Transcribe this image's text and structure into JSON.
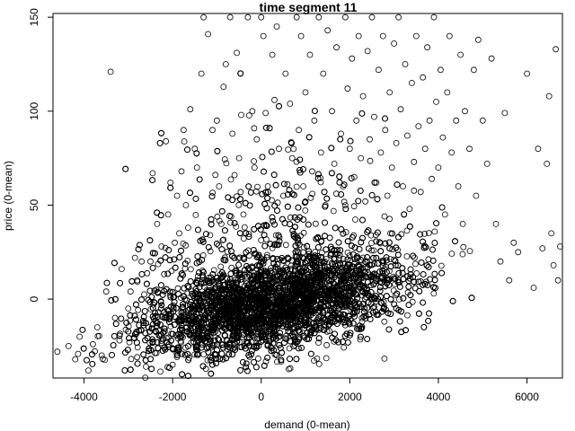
{
  "chart_data": {
    "type": "scatter",
    "title": "time segment 11",
    "xlabel": "demand (0-mean)",
    "ylabel": "price (0-mean)",
    "xlim": [
      -4700,
      6800
    ],
    "ylim": [
      -42,
      152
    ],
    "xticks": [
      -4000,
      -2000,
      0,
      2000,
      4000,
      6000
    ],
    "yticks": [
      0,
      50,
      100,
      150
    ],
    "grid": false,
    "legend": "none",
    "marker": "open-circle",
    "marker_color": "#000000",
    "series": [
      {
        "points": [
          [
            -4600,
            -28
          ],
          [
            -4350,
            -25
          ],
          [
            -4200,
            -32
          ],
          [
            -4100,
            -20
          ],
          [
            -3900,
            -38
          ],
          [
            -3800,
            -24
          ],
          [
            -3700,
            -15
          ],
          [
            -3600,
            -30
          ],
          [
            -3500,
            4
          ],
          [
            -3400,
            121
          ],
          [
            -3300,
            -10
          ],
          [
            -3200,
            -22
          ],
          [
            -3150,
            16
          ],
          [
            -3000,
            -5
          ],
          [
            -2950,
            4
          ],
          [
            -2850,
            22
          ],
          [
            -2800,
            10
          ],
          [
            -2700,
            20
          ],
          [
            -2600,
            -36
          ],
          [
            -2500,
            20
          ],
          [
            -2450,
            67
          ],
          [
            -2350,
            40
          ],
          [
            -2250,
            28
          ],
          [
            -2150,
            84
          ],
          [
            -2100,
            45
          ],
          [
            -2050,
            62
          ],
          [
            -1950,
            30
          ],
          [
            -1900,
            55
          ],
          [
            -1850,
            35
          ],
          [
            -1800,
            68
          ],
          [
            -1750,
            90
          ],
          [
            -1700,
            50
          ],
          [
            -1650,
            38
          ],
          [
            -1600,
            101
          ],
          [
            -1500,
            80
          ],
          [
            -1450,
            70
          ],
          [
            -1350,
            120
          ],
          [
            -1300,
            150
          ],
          [
            -1200,
            141
          ],
          [
            -1100,
            90
          ],
          [
            -1000,
            95
          ],
          [
            -950,
            60
          ],
          [
            -900,
            40
          ],
          [
            -850,
            113
          ],
          [
            -800,
            125
          ],
          [
            -700,
            150
          ],
          [
            -650,
            88
          ],
          [
            -600,
            66
          ],
          [
            -550,
            131
          ],
          [
            -500,
            75
          ],
          [
            -450,
            98
          ],
          [
            -400,
            45
          ],
          [
            -300,
            150
          ],
          [
            -200,
            100
          ],
          [
            -150,
            70
          ],
          [
            -100,
            85
          ],
          [
            0,
            150
          ],
          [
            50,
            140
          ],
          [
            100,
            99
          ],
          [
            150,
            60
          ],
          [
            250,
            130
          ],
          [
            300,
            106
          ],
          [
            350,
            145
          ],
          [
            400,
            80
          ],
          [
            500,
            55
          ],
          [
            550,
            120
          ],
          [
            650,
            104
          ],
          [
            700,
            75
          ],
          [
            800,
            150
          ],
          [
            850,
            90
          ],
          [
            900,
            140
          ],
          [
            950,
            60
          ],
          [
            1000,
            110
          ],
          [
            1100,
            130
          ],
          [
            1150,
            68
          ],
          [
            1200,
            95
          ],
          [
            1300,
            150
          ],
          [
            1350,
            78
          ],
          [
            1400,
            120
          ],
          [
            1450,
            50
          ],
          [
            1500,
            143
          ],
          [
            1600,
            100
          ],
          [
            1650,
            72
          ],
          [
            1700,
            134
          ],
          [
            1800,
            88
          ],
          [
            1850,
            60
          ],
          [
            1900,
            150
          ],
          [
            1950,
            112
          ],
          [
            2000,
            80
          ],
          [
            2050,
            128
          ],
          [
            2100,
            65
          ],
          [
            2150,
            95
          ],
          [
            2200,
            140
          ],
          [
            2250,
            75
          ],
          [
            2300,
            108
          ],
          [
            2350,
            52
          ],
          [
            2400,
            132
          ],
          [
            2450,
            85
          ],
          [
            2500,
            150
          ],
          [
            2550,
            97
          ],
          [
            2600,
            62
          ],
          [
            2650,
            122
          ],
          [
            2700,
            78
          ],
          [
            2750,
            140
          ],
          [
            2800,
            90
          ],
          [
            2850,
            55
          ],
          [
            2900,
            110
          ],
          [
            2950,
            70
          ],
          [
            3000,
            136
          ],
          [
            3050,
            83
          ],
          [
            3100,
            150
          ],
          [
            3150,
            101
          ],
          [
            3200,
            60
          ],
          [
            3250,
            125
          ],
          [
            3300,
            87
          ],
          [
            3350,
            48
          ],
          [
            3400,
            115
          ],
          [
            3450,
            73
          ],
          [
            3500,
            140
          ],
          [
            3550,
            92
          ],
          [
            3600,
            57
          ],
          [
            3650,
            118
          ],
          [
            3700,
            80
          ],
          [
            3750,
            134
          ],
          [
            3800,
            95
          ],
          [
            3850,
            64
          ],
          [
            3900,
            150
          ],
          [
            3950,
            105
          ],
          [
            4000,
            70
          ],
          [
            4050,
            122
          ],
          [
            4100,
            86
          ],
          [
            4150,
            45
          ],
          [
            4200,
            110
          ],
          [
            4250,
            140
          ],
          [
            4300,
            78
          ],
          [
            4400,
            95
          ],
          [
            4450,
            60
          ],
          [
            4500,
            130
          ],
          [
            4550,
            40
          ],
          [
            4600,
            100
          ],
          [
            4700,
            80
          ],
          [
            4800,
            122
          ],
          [
            4850,
            55
          ],
          [
            4900,
            138
          ],
          [
            5000,
            95
          ],
          [
            5100,
            72
          ],
          [
            5200,
            128
          ],
          [
            5300,
            40
          ],
          [
            5400,
            20
          ],
          [
            5500,
            99
          ],
          [
            5600,
            10
          ],
          [
            5700,
            30
          ],
          [
            5800,
            25
          ],
          [
            6000,
            120
          ],
          [
            6150,
            6
          ],
          [
            6250,
            80
          ],
          [
            6350,
            27
          ],
          [
            6450,
            72
          ],
          [
            6500,
            108
          ],
          [
            6550,
            35
          ],
          [
            6600,
            18
          ],
          [
            6650,
            133
          ],
          [
            6700,
            10
          ],
          [
            6750,
            28
          ]
        ],
        "dense_region": {
          "x_range": [
            -4200,
            5200
          ],
          "trend": {
            "slope_per_1000": 4.4,
            "intercept": -4
          },
          "spread_sd": 12,
          "count": 9000
        }
      }
    ]
  }
}
